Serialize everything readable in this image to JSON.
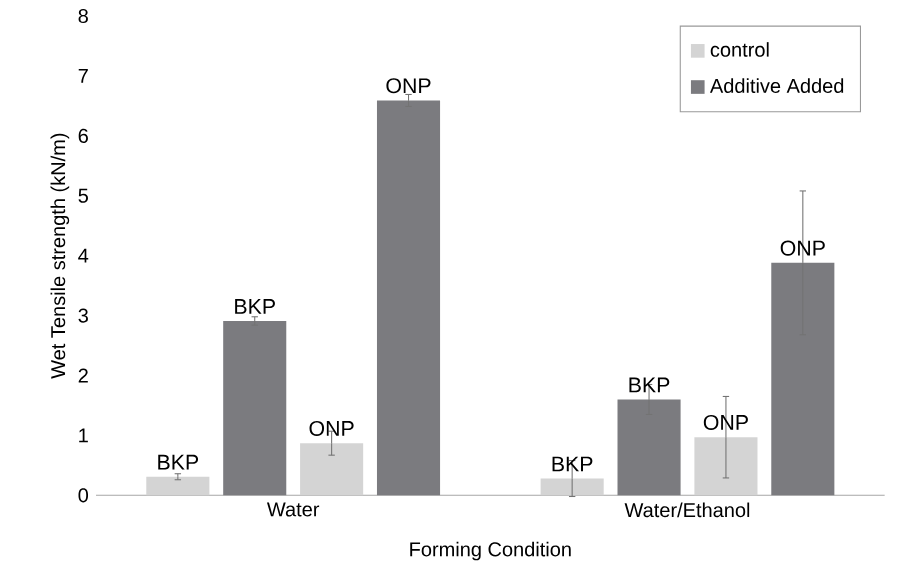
{
  "chart_data": {
    "type": "bar",
    "xlabel": "Forming Condition",
    "ylabel": "Wet Tensile strength (kN/m)",
    "categories": [
      "Water",
      "Water/Ethanol"
    ],
    "series": [
      {
        "name": "control",
        "color": "#d4d4d4",
        "values": [
          0.31,
          0.28
        ],
        "errors": [
          0.05,
          0.3
        ],
        "value_labels": [
          "BKP",
          "BKP"
        ]
      },
      {
        "name": "Additive Added",
        "color": "#7b7b7f",
        "values": [
          2.91,
          1.6
        ],
        "errors": [
          0.07,
          0.25
        ],
        "value_labels": [
          "BKP",
          "BKP"
        ]
      },
      {
        "color": "#d4d4d4",
        "values": [
          0.87,
          0.97
        ],
        "errors": [
          0.2,
          0.68
        ],
        "value_labels": [
          "ONP",
          "ONP"
        ]
      },
      {
        "color": "#7b7b7f",
        "values": [
          6.59,
          3.88
        ],
        "errors": [
          0.1,
          1.2
        ],
        "value_labels": [
          "ONP",
          "ONP"
        ]
      }
    ],
    "ylim": [
      0,
      8
    ],
    "yticks": [
      0,
      1,
      2,
      3,
      4,
      5,
      6,
      7,
      8
    ],
    "grid": false,
    "legend": "top right"
  }
}
